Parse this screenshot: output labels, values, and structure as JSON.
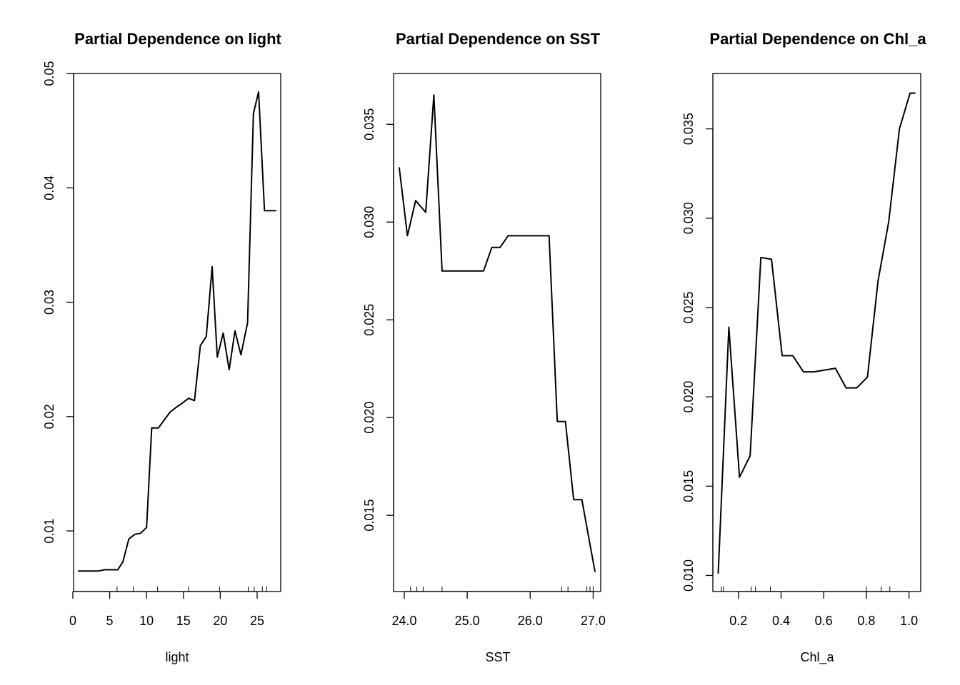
{
  "chart_data": [
    {
      "type": "line",
      "title": "Partial Dependence on light",
      "xlabel": "light",
      "ylabel": "",
      "xlim": [
        0.1,
        28.2
      ],
      "ylim": [
        0.0047,
        0.05
      ],
      "xticks": [
        0,
        5,
        10,
        15,
        20,
        25
      ],
      "xtick_labels": [
        "0",
        "5",
        "10",
        "15",
        "20",
        "25"
      ],
      "yticks": [
        0.01,
        0.02,
        0.03,
        0.04,
        0.05
      ],
      "ytick_labels": [
        "0.01",
        "0.02",
        "0.03",
        "0.04",
        "0.05"
      ],
      "series": [
        {
          "x": [
            0.7,
            1.5,
            2.5,
            3.5,
            4.3,
            5.2,
            6.1,
            6.8,
            7.6,
            8.4,
            9.2,
            10.0,
            10.7,
            11.6,
            12.4,
            13.2,
            14.0,
            14.9,
            15.7,
            16.5,
            17.3,
            18.1,
            18.9,
            19.6,
            20.4,
            21.2,
            22.0,
            22.8,
            23.7,
            24.5,
            25.2,
            26.0,
            26.7,
            27.6
          ],
          "y": [
            0.0065,
            0.0065,
            0.0065,
            0.0065,
            0.0066,
            0.0066,
            0.0066,
            0.0073,
            0.0093,
            0.0097,
            0.0098,
            0.0103,
            0.019,
            0.019,
            0.0197,
            0.0204,
            0.0208,
            0.0212,
            0.0216,
            0.0214,
            0.0262,
            0.027,
            0.0331,
            0.0252,
            0.0273,
            0.0241,
            0.0275,
            0.0254,
            0.0282,
            0.0465,
            0.0484,
            0.038,
            0.038,
            0.038
          ]
        }
      ],
      "rug": [
        6.0,
        8.2,
        11.5,
        15.7,
        19.9,
        23.8,
        24.6,
        25.7,
        26.3
      ]
    },
    {
      "type": "line",
      "title": "Partial Dependence on SST",
      "xlabel": "SST",
      "ylabel": "",
      "xlim": [
        23.83,
        27.12
      ],
      "ylim": [
        0.0111,
        0.0376
      ],
      "xticks": [
        24.0,
        25.0,
        26.0,
        27.0
      ],
      "xtick_labels": [
        "24.0",
        "25.0",
        "26.0",
        "27.0"
      ],
      "yticks": [
        0.015,
        0.02,
        0.025,
        0.03,
        0.035
      ],
      "ytick_labels": [
        "0.015",
        "0.020",
        "0.025",
        "0.030",
        "0.035"
      ],
      "series": [
        {
          "x": [
            23.92,
            24.05,
            24.18,
            24.34,
            24.47,
            24.6,
            24.73,
            24.86,
            25.0,
            25.13,
            25.26,
            25.39,
            25.52,
            25.65,
            25.78,
            25.91,
            26.04,
            26.17,
            26.3,
            26.43,
            26.56,
            26.69,
            26.82,
            26.95,
            27.03
          ],
          "y": [
            0.0328,
            0.0293,
            0.0311,
            0.0305,
            0.0365,
            0.0275,
            0.0275,
            0.0275,
            0.0275,
            0.0275,
            0.0275,
            0.0287,
            0.0287,
            0.0293,
            0.0293,
            0.0293,
            0.0293,
            0.0293,
            0.0293,
            0.0198,
            0.0198,
            0.0158,
            0.0158,
            0.0135,
            0.0121
          ]
        }
      ],
      "rug": [
        24.1,
        24.2,
        24.3,
        24.6,
        26.5,
        26.6,
        26.9,
        26.95,
        27.0
      ]
    },
    {
      "type": "line",
      "title": "Partial Dependence on Chl_a",
      "xlabel": "Chl_a",
      "ylabel": "",
      "xlim": [
        0.08,
        1.055
      ],
      "ylim": [
        0.0091,
        0.0381
      ],
      "xticks": [
        0.2,
        0.4,
        0.6,
        0.8,
        1.0
      ],
      "xtick_labels": [
        "0.2",
        "0.4",
        "0.6",
        "0.8",
        "1.0"
      ],
      "yticks": [
        0.01,
        0.015,
        0.02,
        0.025,
        0.03,
        0.035
      ],
      "ytick_labels": [
        "0.010",
        "0.015",
        "0.020",
        "0.025",
        "0.030",
        "0.035"
      ],
      "series": [
        {
          "x": [
            0.105,
            0.155,
            0.205,
            0.255,
            0.305,
            0.355,
            0.405,
            0.455,
            0.505,
            0.555,
            0.605,
            0.655,
            0.705,
            0.755,
            0.805,
            0.855,
            0.905,
            0.955,
            1.005,
            1.03
          ],
          "y": [
            0.0101,
            0.0239,
            0.0155,
            0.0167,
            0.0278,
            0.0277,
            0.0223,
            0.0223,
            0.0214,
            0.0214,
            0.0215,
            0.0216,
            0.0205,
            0.0205,
            0.0211,
            0.0265,
            0.0298,
            0.035,
            0.037,
            0.037
          ]
        }
      ],
      "rug": [
        0.12,
        0.13,
        0.26,
        0.28,
        0.35,
        0.8,
        0.87,
        0.91
      ]
    }
  ]
}
